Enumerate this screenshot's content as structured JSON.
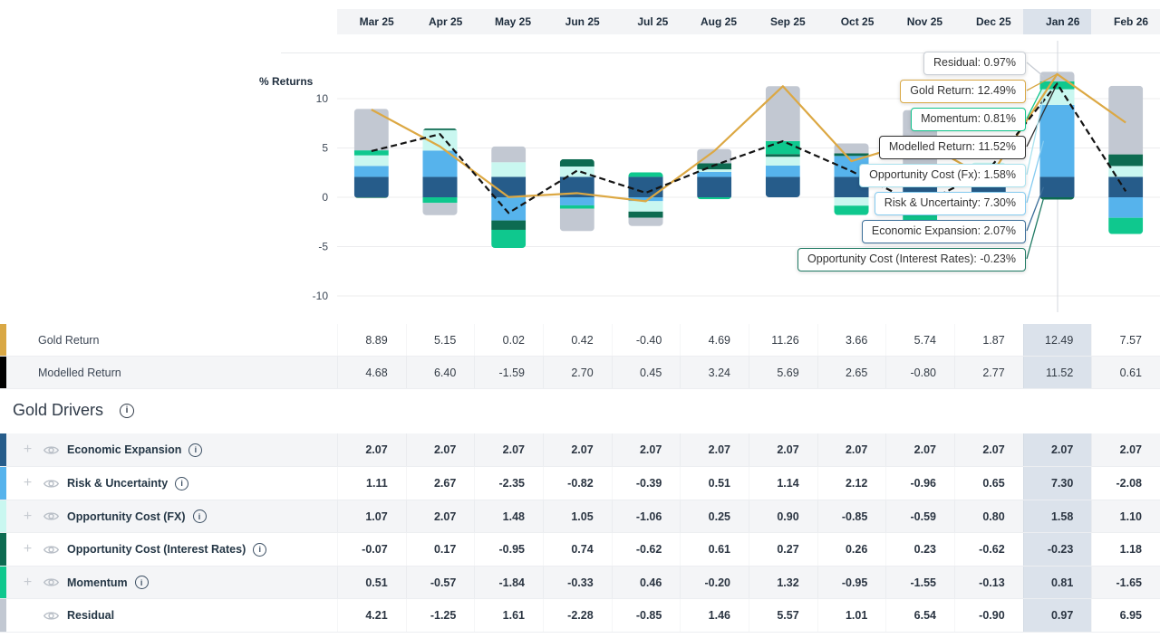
{
  "months": [
    "Mar 25",
    "Apr 25",
    "May 25",
    "Jun 25",
    "Jul 25",
    "Aug 25",
    "Sep 25",
    "Oct 25",
    "Nov 25",
    "Dec 25",
    "Jan 26",
    "Feb 26"
  ],
  "selected_month": "Jan 26",
  "selected_index": 10,
  "chart": {
    "axis_label": "% Returns",
    "ytick_labels": [
      "10",
      "5",
      "0",
      "-5",
      "-10"
    ],
    "ytick_values": [
      10,
      5,
      0,
      -5,
      -10
    ]
  },
  "icons": {
    "plus": "+",
    "info": "i"
  },
  "colors": {
    "gold_line": "#DCA843",
    "modelled_line": "#141414",
    "highlight": "#dbe2eb",
    "crosshair": "#d3d7dc",
    "grid": "#ececee"
  },
  "summary_rows": [
    {
      "key": "gold_return",
      "label": "Gold Return",
      "marker": "#D9A845",
      "values": [
        "8.89",
        "5.15",
        "0.02",
        "0.42",
        "-0.40",
        "4.69",
        "11.26",
        "3.66",
        "5.74",
        "1.87",
        "12.49",
        "7.57"
      ]
    },
    {
      "key": "modelled_return",
      "label": "Modelled Return",
      "marker": "#000000",
      "values": [
        "4.68",
        "6.40",
        "-1.59",
        "2.70",
        "0.45",
        "3.24",
        "5.69",
        "2.65",
        "-0.80",
        "2.77",
        "11.52",
        "0.61"
      ]
    }
  ],
  "drivers_section": {
    "title": "Gold Drivers"
  },
  "drivers": [
    {
      "key": "economic_expansion",
      "label": "Economic Expansion",
      "color": "#265C8A",
      "expandable": true,
      "values": [
        "2.07",
        "2.07",
        "2.07",
        "2.07",
        "2.07",
        "2.07",
        "2.07",
        "2.07",
        "2.07",
        "2.07",
        "2.07",
        "2.07"
      ]
    },
    {
      "key": "risk_uncertainty",
      "label": "Risk & Uncertainty",
      "color": "#56B3EC",
      "expandable": true,
      "values": [
        "1.11",
        "2.67",
        "-2.35",
        "-0.82",
        "-0.39",
        "0.51",
        "1.14",
        "2.12",
        "-0.96",
        "0.65",
        "7.30",
        "-2.08"
      ]
    },
    {
      "key": "fx",
      "label": "Opportunity Cost (FX)",
      "color": "#C9F7F0",
      "expandable": true,
      "values": [
        "1.07",
        "2.07",
        "1.48",
        "1.05",
        "-1.06",
        "0.25",
        "0.90",
        "-0.85",
        "-0.59",
        "0.80",
        "1.58",
        "1.10"
      ]
    },
    {
      "key": "interest_rates",
      "label": "Opportunity Cost (Interest Rates)",
      "color": "#0D6B51",
      "expandable": true,
      "values": [
        "-0.07",
        "0.17",
        "-0.95",
        "0.74",
        "-0.62",
        "0.61",
        "0.27",
        "0.26",
        "0.23",
        "-0.62",
        "-0.23",
        "1.18"
      ]
    },
    {
      "key": "momentum",
      "label": "Momentum",
      "color": "#0FC88E",
      "expandable": true,
      "values": [
        "0.51",
        "-0.57",
        "-1.84",
        "-0.33",
        "0.46",
        "-0.20",
        "1.32",
        "-0.95",
        "-1.55",
        "-0.13",
        "0.81",
        "-1.65"
      ]
    },
    {
      "key": "residual",
      "label": "Residual",
      "color": "#C2C8D2",
      "expandable": false,
      "values": [
        "4.21",
        "-1.25",
        "1.61",
        "-2.28",
        "-0.85",
        "1.46",
        "5.57",
        "1.01",
        "6.54",
        "-0.90",
        "0.97",
        "6.95"
      ]
    }
  ],
  "tooltips": [
    {
      "series": "residual",
      "text": "Residual: 0.97%",
      "border": "#C8CDD4"
    },
    {
      "series": "gold_return",
      "text": "Gold Return: 12.49%",
      "border": "#D9A845"
    },
    {
      "series": "momentum",
      "text": "Momentum: 0.81%",
      "border": "#12C48C"
    },
    {
      "series": "modelled_return",
      "text": "Modelled Return: 11.52%",
      "border": "#2F2F2F"
    },
    {
      "series": "fx",
      "text": "Opportunity Cost (Fx): 1.58%",
      "border": "#ABE2EE"
    },
    {
      "series": "risk_uncertainty",
      "text": "Risk & Uncertainty: 7.30%",
      "border": "#85CBF0"
    },
    {
      "series": "economic_expansion",
      "text": "Economic Expansion: 2.07%",
      "border": "#3B6E99"
    },
    {
      "series": "interest_rates",
      "text": "Opportunity Cost (Interest Rates): -0.23%",
      "border": "#1F7A63"
    }
  ],
  "chart_data": {
    "type": "bar",
    "subtype": "stacked-bars-with-line-overlays",
    "title": "",
    "ylabel": "% Returns",
    "ylim": [
      -10,
      13
    ],
    "yticks": [
      10,
      5,
      0,
      -5,
      -10
    ],
    "grid": "horizontal",
    "categories": [
      "Mar 25",
      "Apr 25",
      "May 25",
      "Jun 25",
      "Jul 25",
      "Aug 25",
      "Sep 25",
      "Oct 25",
      "Nov 25",
      "Dec 25",
      "Jan 26",
      "Feb 26"
    ],
    "series": [
      {
        "name": "Economic Expansion",
        "color": "#265C8A",
        "values": [
          2.07,
          2.07,
          2.07,
          2.07,
          2.07,
          2.07,
          2.07,
          2.07,
          2.07,
          2.07,
          2.07,
          2.07
        ]
      },
      {
        "name": "Risk & Uncertainty",
        "color": "#56B3EC",
        "values": [
          1.11,
          2.67,
          -2.35,
          -0.82,
          -0.39,
          0.51,
          1.14,
          2.12,
          -0.96,
          0.65,
          7.3,
          -2.08
        ]
      },
      {
        "name": "Opportunity Cost (FX)",
        "color": "#C9F7F0",
        "values": [
          1.07,
          2.07,
          1.48,
          1.05,
          -1.06,
          0.25,
          0.9,
          -0.85,
          -0.59,
          0.8,
          1.58,
          1.1
        ]
      },
      {
        "name": "Opportunity Cost (Interest Rates)",
        "color": "#0D6B51",
        "values": [
          -0.07,
          0.17,
          -0.95,
          0.74,
          -0.62,
          0.61,
          0.27,
          0.26,
          0.23,
          -0.62,
          -0.23,
          1.18
        ]
      },
      {
        "name": "Momentum",
        "color": "#0FC88E",
        "values": [
          0.51,
          -0.57,
          -1.84,
          -0.33,
          0.46,
          -0.2,
          1.32,
          -0.95,
          -1.55,
          -0.13,
          0.81,
          -1.65
        ]
      },
      {
        "name": "Residual",
        "color": "#C2C8D2",
        "values": [
          4.21,
          -1.25,
          1.61,
          -2.28,
          -0.85,
          1.46,
          5.57,
          1.01,
          6.54,
          -0.9,
          0.97,
          6.95
        ]
      }
    ],
    "lines": [
      {
        "name": "Gold Return",
        "style": "solid",
        "color": "#DCA843",
        "values": [
          8.89,
          5.15,
          0.02,
          0.42,
          -0.4,
          4.69,
          11.26,
          3.66,
          5.74,
          1.87,
          12.49,
          7.57
        ]
      },
      {
        "name": "Modelled Return",
        "style": "dashed",
        "color": "#141414",
        "values": [
          4.68,
          6.4,
          -1.59,
          2.7,
          0.45,
          3.24,
          5.69,
          2.65,
          -0.8,
          2.77,
          11.52,
          0.61
        ]
      }
    ]
  }
}
